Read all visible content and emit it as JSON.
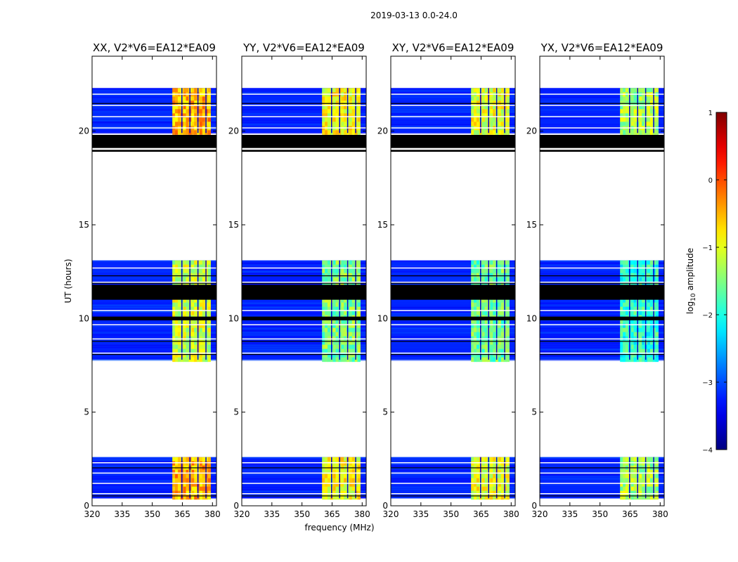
{
  "suptitle": "2019-03-13 0.0-24.0",
  "chart_data": {
    "type": "heatmap",
    "colormap": "jet",
    "xlabel": "frequency (MHz)",
    "ylabel": "UT (hours)",
    "xlim": [
      320,
      382
    ],
    "ylim": [
      0,
      24
    ],
    "xticks": [
      320,
      335,
      350,
      365,
      380
    ],
    "yticks": [
      0,
      5,
      10,
      15,
      20
    ],
    "colorbar": {
      "label": "log10 amplitude",
      "label_base": "log",
      "label_sub": "10",
      "label_rest": " amplitude",
      "range": [
        -4,
        1
      ],
      "ticks": [
        "1",
        "0",
        "−1",
        "−2",
        "−3",
        "−4"
      ],
      "tick_values": [
        1,
        0,
        -1,
        -2,
        -3,
        -4
      ]
    },
    "observed_blocks_hours": [
      [
        0.4,
        2.6
      ],
      [
        7.8,
        13.1
      ],
      [
        19.9,
        22.3
      ]
    ],
    "flagged_hours": [
      [
        18.9,
        19.0
      ],
      [
        19.1,
        19.8
      ],
      [
        9.9,
        10.1
      ],
      [
        11.0,
        11.8
      ]
    ],
    "bright_band_mhz": [
      360,
      379
    ],
    "panels": [
      {
        "title": "XX, V2*V6=EA12*EA09",
        "pol": "XX",
        "baseline": "V2*V6=EA12*EA09",
        "background_level": -3.2,
        "band_level": -0.5
      },
      {
        "title": "YY, V2*V6=EA12*EA09",
        "pol": "YY",
        "baseline": "V2*V6=EA12*EA09",
        "background_level": -3.2,
        "band_level": -0.9
      },
      {
        "title": "XY, V2*V6=EA12*EA09",
        "pol": "XY",
        "baseline": "V2*V6=EA12*EA09",
        "background_level": -3.2,
        "band_level": -1.0
      },
      {
        "title": "YX, V2*V6=EA12*EA09",
        "pol": "YX",
        "baseline": "V2*V6=EA12*EA09",
        "background_level": -3.2,
        "band_level": -1.3
      }
    ]
  }
}
